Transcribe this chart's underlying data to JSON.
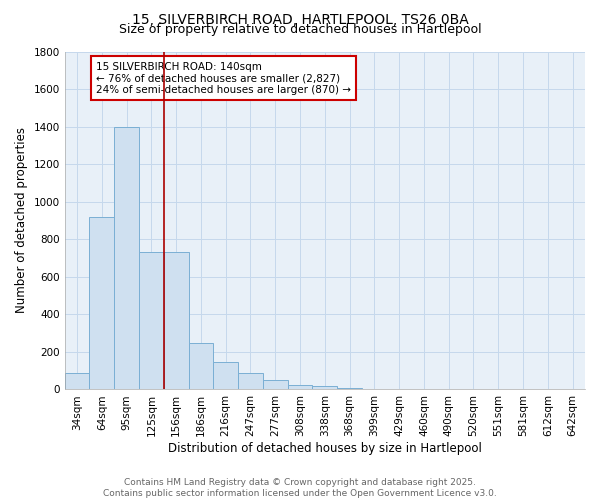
{
  "title_line1": "15, SILVERBIRCH ROAD, HARTLEPOOL, TS26 0BA",
  "title_line2": "Size of property relative to detached houses in Hartlepool",
  "xlabel": "Distribution of detached houses by size in Hartlepool",
  "ylabel": "Number of detached properties",
  "categories": [
    "34sqm",
    "64sqm",
    "95sqm",
    "125sqm",
    "156sqm",
    "186sqm",
    "216sqm",
    "247sqm",
    "277sqm",
    "308sqm",
    "338sqm",
    "368sqm",
    "399sqm",
    "429sqm",
    "460sqm",
    "490sqm",
    "520sqm",
    "551sqm",
    "581sqm",
    "612sqm",
    "642sqm"
  ],
  "values": [
    85,
    920,
    1400,
    730,
    730,
    245,
    145,
    90,
    50,
    25,
    20,
    10,
    0,
    0,
    0,
    5,
    0,
    0,
    0,
    0,
    0
  ],
  "bar_color": "#cfe0f0",
  "bar_edge_color": "#7aafd4",
  "grid_color": "#c5d8ec",
  "vline_x": 3.5,
  "vline_color": "#aa0000",
  "annotation_text": "15 SILVERBIRCH ROAD: 140sqm\n← 76% of detached houses are smaller (2,827)\n24% of semi-detached houses are larger (870) →",
  "annotation_box_color": "#ffffff",
  "annotation_box_edge_color": "#cc0000",
  "ylim": [
    0,
    1800
  ],
  "yticks": [
    0,
    200,
    400,
    600,
    800,
    1000,
    1200,
    1400,
    1600,
    1800
  ],
  "background_color": "#ffffff",
  "plot_bg_color": "#e8f0f8",
  "footer_line1": "Contains HM Land Registry data © Crown copyright and database right 2025.",
  "footer_line2": "Contains public sector information licensed under the Open Government Licence v3.0.",
  "title_fontsize": 10,
  "subtitle_fontsize": 9,
  "axis_label_fontsize": 8.5,
  "tick_fontsize": 7.5,
  "annotation_fontsize": 7.5,
  "footer_fontsize": 6.5
}
